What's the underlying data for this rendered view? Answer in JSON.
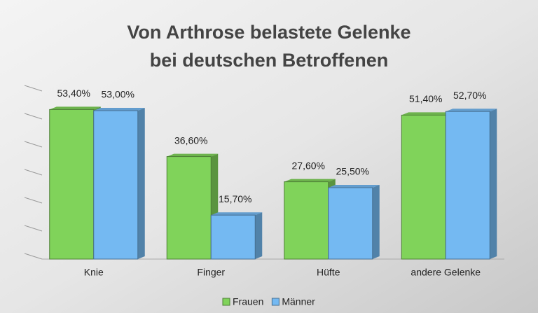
{
  "chart_data": {
    "type": "bar",
    "title": [
      "Von Arthrose belastete Gelenke",
      "bei deutschen Betroffenen"
    ],
    "categories": [
      "Knie",
      "Finger",
      "Hüfte",
      "andere Gelenke"
    ],
    "series": [
      {
        "name": "Frauen",
        "color": "#80d35a",
        "values": [
          53.4,
          36.6,
          27.6,
          51.4
        ],
        "value_labels": [
          "53,40%",
          "36,60%",
          "27,60%",
          "51,40%"
        ]
      },
      {
        "name": "Männer",
        "color": "#74b9f2",
        "values": [
          53.0,
          15.7,
          25.5,
          52.7
        ],
        "value_labels": [
          "53,00%",
          "15,70%",
          "25,50%",
          "52,70%"
        ]
      }
    ],
    "ylim": [
      0,
      60
    ],
    "yticks": [
      0,
      10,
      20,
      30,
      40,
      50,
      60
    ],
    "grid": true,
    "legend": "bottom"
  }
}
